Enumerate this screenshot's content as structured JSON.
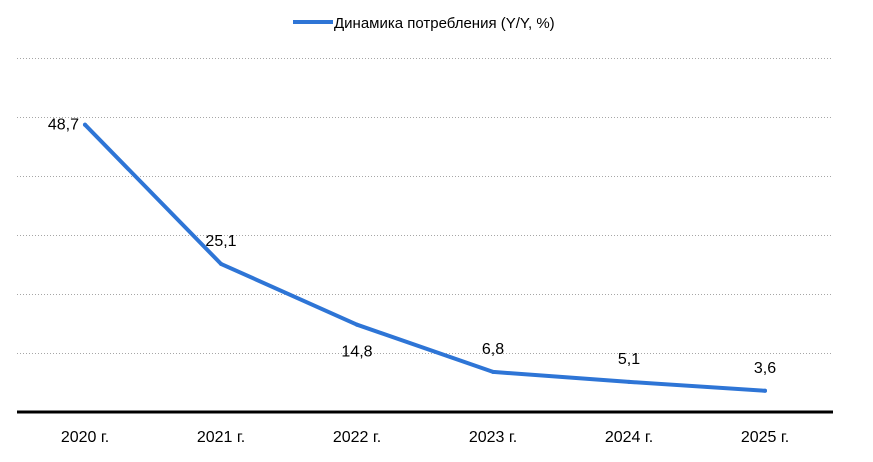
{
  "chart_data": {
    "type": "line",
    "categories": [
      "2020 г.",
      "2021 г.",
      "2022 г.",
      "2023 г.",
      "2024 г.",
      "2025 г."
    ],
    "series": [
      {
        "name": "Динамика потребления (Y/Y, %)",
        "values": [
          48.7,
          25.1,
          14.8,
          6.8,
          5.1,
          3.6
        ],
        "labels": [
          "48,7",
          "25,1",
          "14,8",
          "6,8",
          "5,1",
          "3,6"
        ],
        "color": "#2e75d6"
      }
    ],
    "ylim": [
      0,
      60
    ],
    "ygrid_step": 10,
    "grid": true,
    "grid_style": "dotted",
    "legend_position": "top-center",
    "axis_color": "#000000",
    "grid_color": "#a6a6a6"
  }
}
